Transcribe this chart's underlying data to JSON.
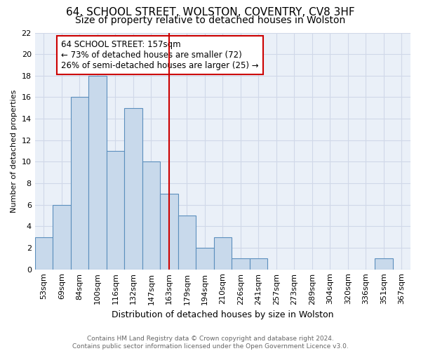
{
  "title1": "64, SCHOOL STREET, WOLSTON, COVENTRY, CV8 3HF",
  "title2": "Size of property relative to detached houses in Wolston",
  "xlabel": "Distribution of detached houses by size in Wolston",
  "ylabel": "Number of detached properties",
  "footer1": "Contains HM Land Registry data © Crown copyright and database right 2024.",
  "footer2": "Contains public sector information licensed under the Open Government Licence v3.0.",
  "bin_labels": [
    "53sqm",
    "69sqm",
    "84sqm",
    "100sqm",
    "116sqm",
    "132sqm",
    "147sqm",
    "163sqm",
    "179sqm",
    "194sqm",
    "210sqm",
    "226sqm",
    "241sqm",
    "257sqm",
    "273sqm",
    "289sqm",
    "304sqm",
    "320sqm",
    "336sqm",
    "351sqm",
    "367sqm"
  ],
  "bar_heights": [
    3,
    6,
    16,
    18,
    11,
    15,
    10,
    7,
    5,
    2,
    3,
    1,
    1,
    0,
    0,
    0,
    0,
    0,
    0,
    1,
    0
  ],
  "bar_color": "#c8d9eb",
  "bar_edgecolor": "#5b8fbd",
  "vline_x_index": 7,
  "vline_color": "#cc0000",
  "annotation_text": "64 SCHOOL STREET: 157sqm\n← 73% of detached houses are smaller (72)\n26% of semi-detached houses are larger (25) →",
  "annotation_box_color": "#ffffff",
  "annotation_box_edgecolor": "#cc0000",
  "ylim": [
    0,
    22
  ],
  "yticks": [
    0,
    2,
    4,
    6,
    8,
    10,
    12,
    14,
    16,
    18,
    20,
    22
  ],
  "grid_color": "#d0d8e8",
  "background_color": "#eaf0f8",
  "title1_fontsize": 11,
  "title2_fontsize": 10,
  "ylabel_fontsize": 8,
  "xlabel_fontsize": 9,
  "tick_fontsize": 8,
  "annotation_fontsize": 8.5,
  "footer_fontsize": 6.5
}
